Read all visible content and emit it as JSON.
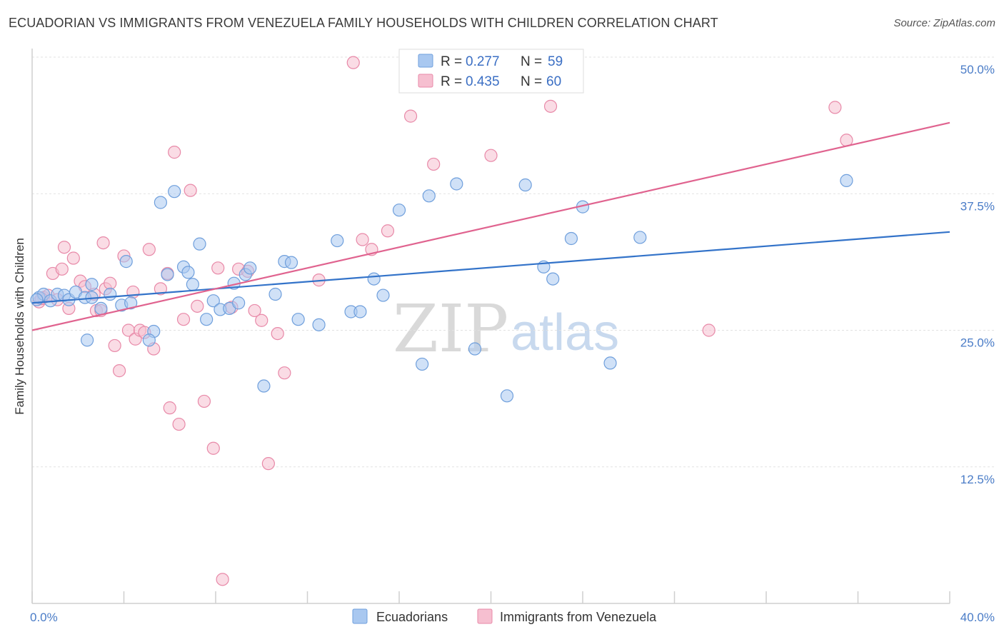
{
  "header": {
    "title": "ECUADORIAN VS IMMIGRANTS FROM VENEZUELA FAMILY HOUSEHOLDS WITH CHILDREN CORRELATION CHART",
    "source": "Source: ZipAtlas.com"
  },
  "legend_box": {
    "rows": [
      {
        "r_label": "R = ",
        "r_value": "0.277",
        "n_label": "N = ",
        "n_value": "59",
        "color": "#a9c8f0",
        "stroke": "#6f9fdc"
      },
      {
        "r_label": "R = ",
        "r_value": "0.435",
        "n_label": "N = ",
        "n_value": "60",
        "color": "#f6bfd0",
        "stroke": "#e889a8"
      }
    ]
  },
  "watermark": {
    "zip": "ZIP",
    "atlas": "atlas"
  },
  "chart_data": {
    "type": "scatter",
    "title": "ECUADORIAN VS IMMIGRANTS FROM VENEZUELA FAMILY HOUSEHOLDS WITH CHILDREN CORRELATION CHART",
    "xlabel": "",
    "ylabel": "Family Households with Children",
    "xlim": [
      0,
      40
    ],
    "ylim": [
      0,
      50
    ],
    "x_tick_labels": [
      {
        "value": 0,
        "label": "0.0%"
      },
      {
        "value": 40,
        "label": "40.0%"
      }
    ],
    "y_tick_labels": [
      {
        "value": 12.5,
        "label": "12.5%"
      },
      {
        "value": 25,
        "label": "25.0%"
      },
      {
        "value": 37.5,
        "label": "37.5%"
      },
      {
        "value": 50,
        "label": "50.0%"
      }
    ],
    "series": [
      {
        "name": "Ecuadorians",
        "color": "#a9c8f0",
        "stroke": "#6f9fdc",
        "line_color": "#3373c9",
        "trend": {
          "x0": 0,
          "y0": 27.5,
          "x1": 40,
          "y1": 34.0
        },
        "points": [
          [
            0.3,
            28.0
          ],
          [
            0.5,
            28.3
          ],
          [
            0.8,
            27.7
          ],
          [
            1.1,
            28.3
          ],
          [
            1.4,
            28.2
          ],
          [
            1.6,
            27.8
          ],
          [
            1.9,
            28.5
          ],
          [
            2.3,
            28.0
          ],
          [
            2.6,
            28.0
          ],
          [
            3.0,
            27.0
          ],
          [
            3.4,
            28.3
          ],
          [
            3.9,
            27.3
          ],
          [
            4.3,
            27.5
          ],
          [
            2.4,
            24.1
          ],
          [
            2.6,
            29.2
          ],
          [
            4.1,
            31.3
          ],
          [
            5.3,
            24.9
          ],
          [
            5.1,
            24.1
          ],
          [
            5.6,
            36.7
          ],
          [
            5.9,
            30.1
          ],
          [
            6.2,
            37.7
          ],
          [
            6.6,
            30.8
          ],
          [
            6.8,
            30.3
          ],
          [
            7.0,
            29.2
          ],
          [
            7.3,
            32.9
          ],
          [
            7.6,
            26.0
          ],
          [
            7.9,
            27.7
          ],
          [
            8.2,
            26.9
          ],
          [
            8.6,
            27.0
          ],
          [
            8.8,
            29.3
          ],
          [
            9.0,
            27.5
          ],
          [
            9.3,
            30.1
          ],
          [
            9.5,
            30.7
          ],
          [
            10.1,
            19.9
          ],
          [
            10.6,
            28.3
          ],
          [
            11.0,
            31.3
          ],
          [
            11.3,
            31.2
          ],
          [
            11.6,
            26.0
          ],
          [
            12.5,
            25.5
          ],
          [
            13.3,
            33.2
          ],
          [
            13.9,
            26.7
          ],
          [
            14.3,
            26.7
          ],
          [
            14.9,
            29.7
          ],
          [
            15.3,
            28.2
          ],
          [
            16.0,
            36.0
          ],
          [
            17.0,
            21.9
          ],
          [
            17.3,
            37.3
          ],
          [
            18.5,
            38.4
          ],
          [
            19.3,
            23.3
          ],
          [
            20.7,
            19.0
          ],
          [
            21.5,
            38.3
          ],
          [
            22.3,
            30.8
          ],
          [
            22.7,
            29.7
          ],
          [
            23.5,
            33.4
          ],
          [
            24.0,
            36.3
          ],
          [
            25.2,
            22.0
          ],
          [
            26.5,
            33.5
          ],
          [
            35.5,
            38.7
          ],
          [
            0.2,
            27.8
          ]
        ]
      },
      {
        "name": "Immigrants from Venezuela",
        "color": "#f6bfd0",
        "stroke": "#e889a8",
        "line_color": "#e0638f",
        "trend": {
          "x0": 0,
          "y0": 25.0,
          "x1": 40,
          "y1": 44.0
        },
        "points": [
          [
            0.3,
            27.6
          ],
          [
            0.5,
            28.0
          ],
          [
            0.7,
            28.2
          ],
          [
            0.9,
            30.2
          ],
          [
            1.1,
            27.8
          ],
          [
            1.3,
            30.6
          ],
          [
            1.4,
            32.6
          ],
          [
            1.6,
            27.0
          ],
          [
            1.8,
            31.6
          ],
          [
            2.1,
            29.5
          ],
          [
            2.3,
            29.0
          ],
          [
            2.7,
            28.3
          ],
          [
            2.8,
            26.8
          ],
          [
            3.0,
            26.8
          ],
          [
            3.2,
            28.8
          ],
          [
            3.4,
            29.3
          ],
          [
            3.6,
            23.6
          ],
          [
            3.8,
            21.3
          ],
          [
            4.0,
            31.8
          ],
          [
            4.2,
            25.0
          ],
          [
            4.4,
            28.5
          ],
          [
            4.5,
            24.2
          ],
          [
            4.7,
            25.0
          ],
          [
            4.9,
            24.8
          ],
          [
            5.1,
            32.4
          ],
          [
            5.3,
            23.3
          ],
          [
            5.6,
            28.8
          ],
          [
            5.9,
            30.2
          ],
          [
            6.0,
            17.9
          ],
          [
            6.2,
            41.3
          ],
          [
            6.4,
            16.4
          ],
          [
            6.6,
            26.0
          ],
          [
            6.9,
            37.8
          ],
          [
            7.2,
            27.2
          ],
          [
            7.5,
            18.5
          ],
          [
            7.9,
            14.2
          ],
          [
            8.1,
            30.7
          ],
          [
            8.3,
            2.2
          ],
          [
            8.7,
            27.1
          ],
          [
            9.0,
            30.6
          ],
          [
            9.4,
            30.4
          ],
          [
            9.7,
            26.8
          ],
          [
            10.0,
            25.9
          ],
          [
            10.3,
            12.8
          ],
          [
            10.7,
            24.7
          ],
          [
            11.0,
            21.1
          ],
          [
            12.5,
            29.6
          ],
          [
            14.0,
            49.5
          ],
          [
            14.4,
            33.3
          ],
          [
            14.8,
            32.4
          ],
          [
            15.5,
            34.1
          ],
          [
            16.5,
            44.6
          ],
          [
            17.5,
            40.2
          ],
          [
            20.0,
            41.0
          ],
          [
            22.6,
            45.5
          ],
          [
            29.5,
            25.0
          ],
          [
            35.0,
            45.4
          ],
          [
            35.5,
            42.4
          ],
          [
            3.1,
            33.0
          ],
          [
            0.4,
            27.9
          ]
        ]
      }
    ],
    "legend": [
      "Ecuadorians",
      "Immigrants from Venezuela"
    ],
    "legend_position": "bottom-center",
    "grid": true
  }
}
